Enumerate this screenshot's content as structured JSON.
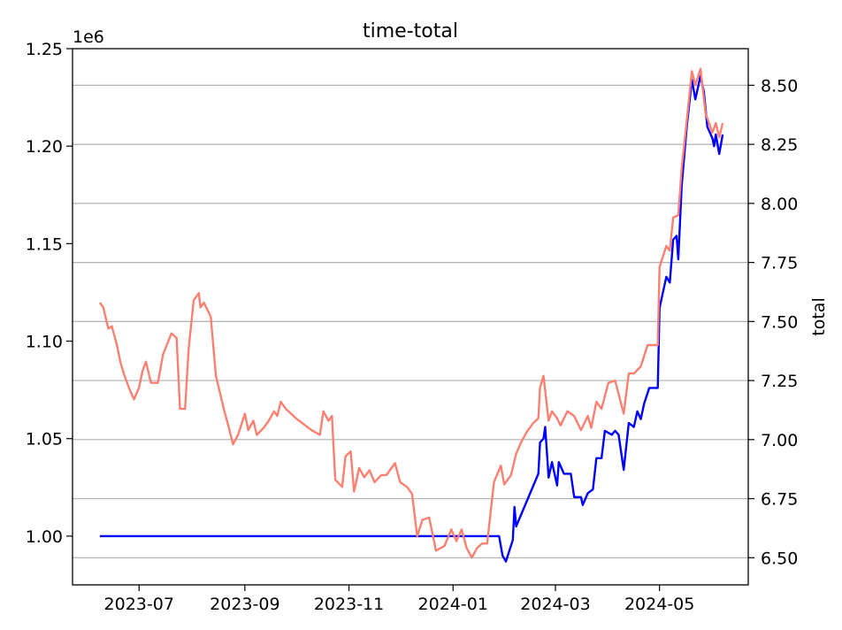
{
  "chart_data": {
    "type": "line",
    "title": "time-total",
    "xlabel": "",
    "ylabel_left": "",
    "ylabel_right": "total",
    "left_offset_label": "1e6",
    "left_ylim": [
      975000,
      1250000
    ],
    "right_ylim": [
      6.385,
      8.655
    ],
    "x_range": [
      "2023-05-23",
      "2024-06-22"
    ],
    "x_ticks": [
      "2023-07-01",
      "2023-09-01",
      "2023-11-01",
      "2024-01-01",
      "2024-03-01",
      "2024-05-01"
    ],
    "x_tick_labels": [
      "2023-07",
      "2023-09",
      "2023-11",
      "2024-01",
      "2024-03",
      "2024-05"
    ],
    "left_ticks": [
      1000000,
      1050000,
      1100000,
      1150000,
      1200000,
      1250000
    ],
    "left_tick_labels": [
      "1.00",
      "1.05",
      "1.10",
      "1.15",
      "1.20",
      "1.25"
    ],
    "right_ticks": [
      6.5,
      6.75,
      7.0,
      7.25,
      7.5,
      7.75,
      8.0,
      8.25,
      8.5
    ],
    "right_tick_labels": [
      "6.50",
      "6.75",
      "7.00",
      "7.25",
      "7.50",
      "7.75",
      "8.00",
      "8.25",
      "8.50"
    ],
    "grid": "horizontal, right axis",
    "colors": {
      "blue": "#0000ff",
      "salmon": "#fa8072",
      "grid": "#b0b0b0"
    },
    "series": [
      {
        "axis": "left",
        "color": "#0000ff",
        "points": [
          [
            "2023-06-08",
            1000000
          ],
          [
            "2023-07-15",
            1000000
          ],
          [
            "2023-08-20",
            1000000
          ],
          [
            "2023-09-25",
            1000000
          ],
          [
            "2023-10-30",
            1000000
          ],
          [
            "2023-12-05",
            1000000
          ],
          [
            "2024-01-10",
            1000000
          ],
          [
            "2024-01-28",
            1000000
          ],
          [
            "2024-01-30",
            990000
          ],
          [
            "2024-02-01",
            987000
          ],
          [
            "2024-02-05",
            998000
          ],
          [
            "2024-02-06",
            1015000
          ],
          [
            "2024-02-07",
            1005000
          ],
          [
            "2024-02-20",
            1032000
          ],
          [
            "2024-02-21",
            1048000
          ],
          [
            "2024-02-23",
            1050000
          ],
          [
            "2024-02-24",
            1056000
          ],
          [
            "2024-02-26",
            1030000
          ],
          [
            "2024-02-28",
            1038000
          ],
          [
            "2024-03-02",
            1026000
          ],
          [
            "2024-03-03",
            1038000
          ],
          [
            "2024-03-06",
            1032000
          ],
          [
            "2024-03-10",
            1032000
          ],
          [
            "2024-03-12",
            1020000
          ],
          [
            "2024-03-16",
            1020000
          ],
          [
            "2024-03-17",
            1016000
          ],
          [
            "2024-03-20",
            1022000
          ],
          [
            "2024-03-23",
            1024000
          ],
          [
            "2024-03-25",
            1040000
          ],
          [
            "2024-03-28",
            1040000
          ],
          [
            "2024-03-30",
            1054000
          ],
          [
            "2024-04-03",
            1052000
          ],
          [
            "2024-04-05",
            1054000
          ],
          [
            "2024-04-07",
            1052000
          ],
          [
            "2024-04-10",
            1034000
          ],
          [
            "2024-04-13",
            1058000
          ],
          [
            "2024-04-16",
            1056000
          ],
          [
            "2024-04-18",
            1064000
          ],
          [
            "2024-04-20",
            1060000
          ],
          [
            "2024-04-22",
            1068000
          ],
          [
            "2024-04-25",
            1076000
          ],
          [
            "2024-04-30",
            1076000
          ],
          [
            "2024-05-01",
            1117000
          ],
          [
            "2024-05-05",
            1133000
          ],
          [
            "2024-05-07",
            1130000
          ],
          [
            "2024-05-09",
            1152000
          ],
          [
            "2024-05-11",
            1154000
          ],
          [
            "2024-05-12",
            1142000
          ],
          [
            "2024-05-14",
            1180000
          ],
          [
            "2024-05-17",
            1210000
          ],
          [
            "2024-05-20",
            1234000
          ],
          [
            "2024-05-22",
            1224000
          ],
          [
            "2024-05-25",
            1236000
          ],
          [
            "2024-05-27",
            1228000
          ],
          [
            "2024-05-29",
            1210000
          ],
          [
            "2024-06-01",
            1204000
          ],
          [
            "2024-06-02",
            1200000
          ],
          [
            "2024-06-03",
            1206000
          ],
          [
            "2024-06-05",
            1196000
          ],
          [
            "2024-06-07",
            1206000
          ]
        ]
      },
      {
        "axis": "right",
        "color": "#fa8072",
        "points": [
          [
            "2023-06-08",
            7.58
          ],
          [
            "2023-06-10",
            7.56
          ],
          [
            "2023-06-13",
            7.47
          ],
          [
            "2023-06-15",
            7.48
          ],
          [
            "2023-06-18",
            7.4
          ],
          [
            "2023-06-20",
            7.33
          ],
          [
            "2023-06-22",
            7.28
          ],
          [
            "2023-06-25",
            7.22
          ],
          [
            "2023-06-28",
            7.17
          ],
          [
            "2023-07-01",
            7.22
          ],
          [
            "2023-07-03",
            7.29
          ],
          [
            "2023-07-05",
            7.33
          ],
          [
            "2023-07-08",
            7.24
          ],
          [
            "2023-07-12",
            7.24
          ],
          [
            "2023-07-15",
            7.36
          ],
          [
            "2023-07-20",
            7.45
          ],
          [
            "2023-07-23",
            7.43
          ],
          [
            "2023-07-25",
            7.13
          ],
          [
            "2023-07-28",
            7.13
          ],
          [
            "2023-07-30",
            7.38
          ],
          [
            "2023-08-02",
            7.59
          ],
          [
            "2023-08-05",
            7.62
          ],
          [
            "2023-08-06",
            7.56
          ],
          [
            "2023-08-08",
            7.58
          ],
          [
            "2023-08-12",
            7.52
          ],
          [
            "2023-08-15",
            7.27
          ],
          [
            "2023-08-20",
            7.12
          ],
          [
            "2023-08-23",
            7.04
          ],
          [
            "2023-08-25",
            6.98
          ],
          [
            "2023-08-28",
            7.02
          ],
          [
            "2023-09-01",
            7.11
          ],
          [
            "2023-09-03",
            7.04
          ],
          [
            "2023-09-06",
            7.08
          ],
          [
            "2023-09-08",
            7.02
          ],
          [
            "2023-09-12",
            7.05
          ],
          [
            "2023-09-15",
            7.08
          ],
          [
            "2023-09-18",
            7.12
          ],
          [
            "2023-09-20",
            7.1
          ],
          [
            "2023-09-22",
            7.16
          ],
          [
            "2023-09-25",
            7.13
          ],
          [
            "2023-10-01",
            7.09
          ],
          [
            "2023-10-10",
            7.04
          ],
          [
            "2023-10-15",
            7.02
          ],
          [
            "2023-10-17",
            7.12
          ],
          [
            "2023-10-20",
            7.08
          ],
          [
            "2023-10-22",
            7.1
          ],
          [
            "2023-10-24",
            6.83
          ],
          [
            "2023-10-28",
            6.8
          ],
          [
            "2023-10-30",
            6.93
          ],
          [
            "2023-11-02",
            6.95
          ],
          [
            "2023-11-04",
            6.78
          ],
          [
            "2023-11-07",
            6.88
          ],
          [
            "2023-11-10",
            6.84
          ],
          [
            "2023-11-13",
            6.87
          ],
          [
            "2023-11-16",
            6.82
          ],
          [
            "2023-11-20",
            6.85
          ],
          [
            "2023-11-23",
            6.85
          ],
          [
            "2023-11-25",
            6.87
          ],
          [
            "2023-11-28",
            6.9
          ],
          [
            "2023-12-01",
            6.82
          ],
          [
            "2023-12-05",
            6.8
          ],
          [
            "2023-12-08",
            6.77
          ],
          [
            "2023-12-11",
            6.59
          ],
          [
            "2023-12-14",
            6.66
          ],
          [
            "2023-12-18",
            6.67
          ],
          [
            "2023-12-22",
            6.53
          ],
          [
            "2023-12-27",
            6.55
          ],
          [
            "2023-12-31",
            6.62
          ],
          [
            "2024-01-03",
            6.57
          ],
          [
            "2024-01-06",
            6.62
          ],
          [
            "2024-01-09",
            6.54
          ],
          [
            "2024-01-12",
            6.5
          ],
          [
            "2024-01-15",
            6.54
          ],
          [
            "2024-01-18",
            6.56
          ],
          [
            "2024-01-21",
            6.56
          ],
          [
            "2024-01-25",
            6.82
          ],
          [
            "2024-01-29",
            6.89
          ],
          [
            "2024-01-31",
            6.81
          ],
          [
            "2024-02-04",
            6.85
          ],
          [
            "2024-02-07",
            6.94
          ],
          [
            "2024-02-10",
            6.99
          ],
          [
            "2024-02-13",
            7.03
          ],
          [
            "2024-02-17",
            7.07
          ],
          [
            "2024-02-20",
            7.09
          ],
          [
            "2024-02-21",
            7.22
          ],
          [
            "2024-02-23",
            7.27
          ],
          [
            "2024-02-26",
            7.08
          ],
          [
            "2024-02-28",
            7.12
          ],
          [
            "2024-03-02",
            7.09
          ],
          [
            "2024-03-04",
            7.06
          ],
          [
            "2024-03-08",
            7.12
          ],
          [
            "2024-03-12",
            7.1
          ],
          [
            "2024-03-16",
            7.04
          ],
          [
            "2024-03-20",
            7.1
          ],
          [
            "2024-03-22",
            7.05
          ],
          [
            "2024-03-25",
            7.16
          ],
          [
            "2024-03-28",
            7.13
          ],
          [
            "2024-04-01",
            7.24
          ],
          [
            "2024-04-05",
            7.25
          ],
          [
            "2024-04-10",
            7.11
          ],
          [
            "2024-04-13",
            7.28
          ],
          [
            "2024-04-16",
            7.28
          ],
          [
            "2024-04-20",
            7.31
          ],
          [
            "2024-04-24",
            7.4
          ],
          [
            "2024-04-30",
            7.4
          ],
          [
            "2024-05-01",
            7.73
          ],
          [
            "2024-05-05",
            7.82
          ],
          [
            "2024-05-07",
            7.8
          ],
          [
            "2024-05-09",
            7.94
          ],
          [
            "2024-05-12",
            7.95
          ],
          [
            "2024-05-14",
            8.15
          ],
          [
            "2024-05-17",
            8.35
          ],
          [
            "2024-05-20",
            8.56
          ],
          [
            "2024-05-22",
            8.5
          ],
          [
            "2024-05-25",
            8.57
          ],
          [
            "2024-05-28",
            8.38
          ],
          [
            "2024-06-01",
            8.3
          ],
          [
            "2024-06-03",
            8.34
          ],
          [
            "2024-06-05",
            8.28
          ],
          [
            "2024-06-07",
            8.34
          ]
        ]
      }
    ]
  }
}
